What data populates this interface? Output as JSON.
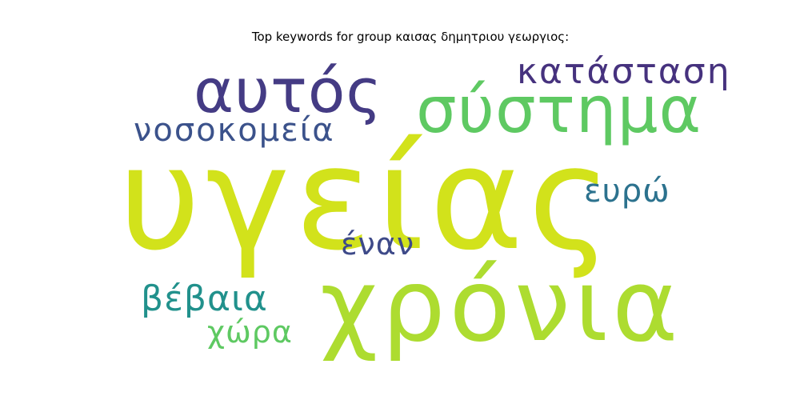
{
  "chart_data": {
    "type": "wordcloud",
    "title": "Top keywords for group καισας δημητριου γεωργιος:",
    "words": [
      {
        "text": "υγείας",
        "color": "#d2e21b"
      },
      {
        "text": "χρόνια",
        "color": "#addc30"
      },
      {
        "text": "σύστημα",
        "color": "#5ec962"
      },
      {
        "text": "αυτός",
        "color": "#443b84"
      },
      {
        "text": "κατάσταση",
        "color": "#46327e"
      },
      {
        "text": "νοσοκομεία",
        "color": "#3b528b"
      },
      {
        "text": "ευρώ",
        "color": "#2c728e"
      },
      {
        "text": "έναν",
        "color": "#3e4a89"
      },
      {
        "text": "βέβαια",
        "color": "#21918c"
      },
      {
        "text": "χώρα",
        "color": "#5ec962"
      }
    ]
  }
}
